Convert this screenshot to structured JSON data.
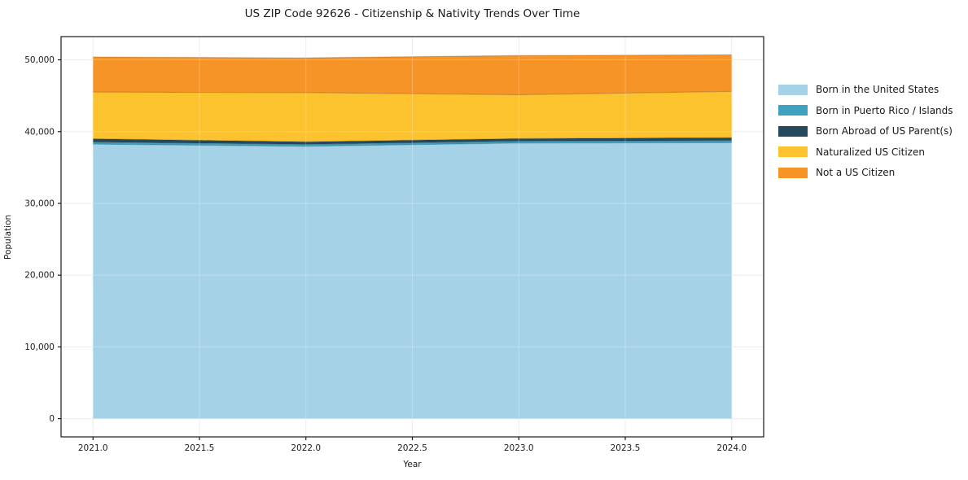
{
  "chart_data": {
    "type": "area",
    "stacked": true,
    "title": "US ZIP Code 92626 - Citizenship & Nativity Trends Over Time",
    "xlabel": "Year",
    "ylabel": "Population",
    "x": [
      2021,
      2022,
      2023,
      2024
    ],
    "series": [
      {
        "name": "Born in the United States",
        "color": "#a6d2e8",
        "values": [
          38250,
          37950,
          38400,
          38450
        ]
      },
      {
        "name": "Born in Puerto Rico / Islands",
        "color": "#3fa0c0",
        "values": [
          300,
          280,
          280,
          300
        ]
      },
      {
        "name": "Born Abroad of US Parent(s)",
        "color": "#254a5e",
        "values": [
          450,
          350,
          350,
          400
        ]
      },
      {
        "name": "Naturalized US Citizen",
        "color": "#fdc32f",
        "values": [
          6500,
          6850,
          6100,
          6450
        ]
      },
      {
        "name": "Not a US Citizen",
        "color": "#f79428",
        "values": [
          4900,
          4850,
          5470,
          5100
        ]
      }
    ],
    "xlim": [
      2020.85,
      2024.15
    ],
    "ylim": [
      -2535,
      53235
    ],
    "xticks": {
      "values": [
        2021.0,
        2021.5,
        2022.0,
        2022.5,
        2023.0,
        2023.5,
        2024.0
      ],
      "labels": [
        "2021.0",
        "2021.5",
        "2022.0",
        "2022.5",
        "2023.0",
        "2023.5",
        "2024.0"
      ]
    },
    "yticks": {
      "values": [
        0,
        10000,
        20000,
        30000,
        40000,
        50000
      ],
      "labels": [
        "0",
        "10,000",
        "20,000",
        "30,000",
        "40,000",
        "50,000"
      ]
    },
    "grid": true,
    "legend_position": "right",
    "colors": {
      "background": "#ffffff",
      "spine": "#1a1a1a",
      "gridline": "#e7e7e7",
      "tick_text": "#1a1a1a"
    }
  }
}
